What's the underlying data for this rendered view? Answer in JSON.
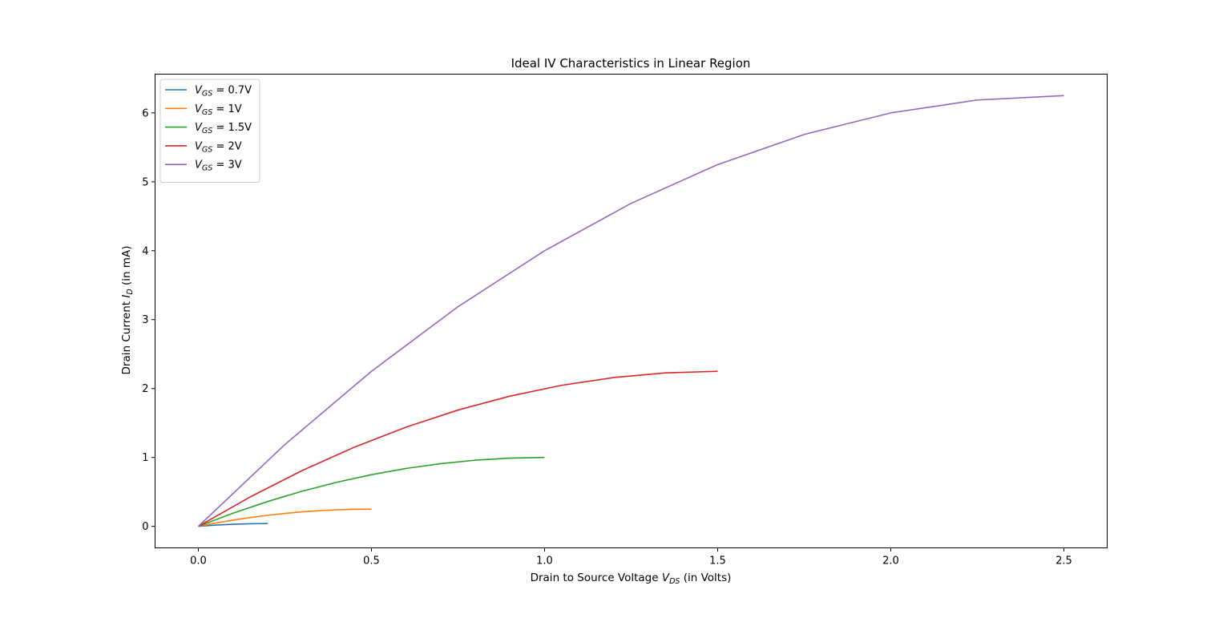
{
  "chart_data": {
    "type": "line",
    "title": "Ideal IV Characteristics in Linear Region",
    "xlabel": {
      "prefix": "Drain to Source Voltage ",
      "var": "V",
      "sub": "DS",
      "suffix": " (in Volts)"
    },
    "ylabel": {
      "prefix": "Drain Current ",
      "var": "I",
      "sub": "D",
      "suffix": " (in mA)"
    },
    "xlim": [
      -0.125,
      2.625
    ],
    "ylim": [
      -0.3125,
      6.5625
    ],
    "xticks": [
      0.0,
      0.5,
      1.0,
      1.5,
      2.0,
      2.5
    ],
    "xtick_labels": [
      "0.0",
      "0.5",
      "1.0",
      "1.5",
      "2.0",
      "2.5"
    ],
    "yticks": [
      0,
      1,
      2,
      3,
      4,
      5,
      6
    ],
    "ytick_labels": [
      "0",
      "1",
      "2",
      "3",
      "4",
      "5",
      "6"
    ],
    "grid": false,
    "legend_position": "top-left",
    "series": [
      {
        "name": "V_GS = 0.7V",
        "label_var": "V",
        "label_sub": "GS",
        "label_rest": " = 0.7V",
        "color": "#1f77b4",
        "x": [
          0,
          0.025,
          0.05,
          0.075,
          0.1,
          0.125,
          0.15,
          0.175,
          0.2
        ],
        "y": [
          0,
          0.0094,
          0.0175,
          0.0244,
          0.03,
          0.0344,
          0.0375,
          0.0394,
          0.04
        ]
      },
      {
        "name": "V_GS = 1V",
        "label_var": "V",
        "label_sub": "GS",
        "label_rest": " = 1V",
        "color": "#ff7f0e",
        "x": [
          0,
          0.05,
          0.1,
          0.15,
          0.2,
          0.25,
          0.3,
          0.35,
          0.4,
          0.45,
          0.5
        ],
        "y": [
          0,
          0.0475,
          0.09,
          0.1275,
          0.16,
          0.1875,
          0.21,
          0.2275,
          0.24,
          0.2475,
          0.25
        ]
      },
      {
        "name": "V_GS = 1.5V",
        "label_var": "V",
        "label_sub": "GS",
        "label_rest": " = 1.5V",
        "color": "#2ca02c",
        "x": [
          0,
          0.1,
          0.2,
          0.3,
          0.4,
          0.5,
          0.6,
          0.7,
          0.8,
          0.9,
          1.0
        ],
        "y": [
          0,
          0.19,
          0.36,
          0.51,
          0.64,
          0.75,
          0.84,
          0.91,
          0.96,
          0.99,
          1.0
        ]
      },
      {
        "name": "V_GS = 2V",
        "label_var": "V",
        "label_sub": "GS",
        "label_rest": " = 2V",
        "color": "#d62728",
        "x": [
          0,
          0.15,
          0.3,
          0.45,
          0.6,
          0.75,
          0.9,
          1.05,
          1.2,
          1.35,
          1.5
        ],
        "y": [
          0,
          0.4275,
          0.81,
          1.1475,
          1.44,
          1.6875,
          1.89,
          2.0475,
          2.16,
          2.2275,
          2.25
        ]
      },
      {
        "name": "V_GS = 3V",
        "label_var": "V",
        "label_sub": "GS",
        "label_rest": " = 3V",
        "color": "#9467bd",
        "x": [
          0,
          0.25,
          0.5,
          0.75,
          1.0,
          1.25,
          1.5,
          1.75,
          2.0,
          2.25,
          2.5
        ],
        "y": [
          0,
          1.1875,
          2.25,
          3.1875,
          4.0,
          4.6875,
          5.25,
          5.6875,
          6.0,
          6.1875,
          6.25
        ]
      }
    ]
  }
}
